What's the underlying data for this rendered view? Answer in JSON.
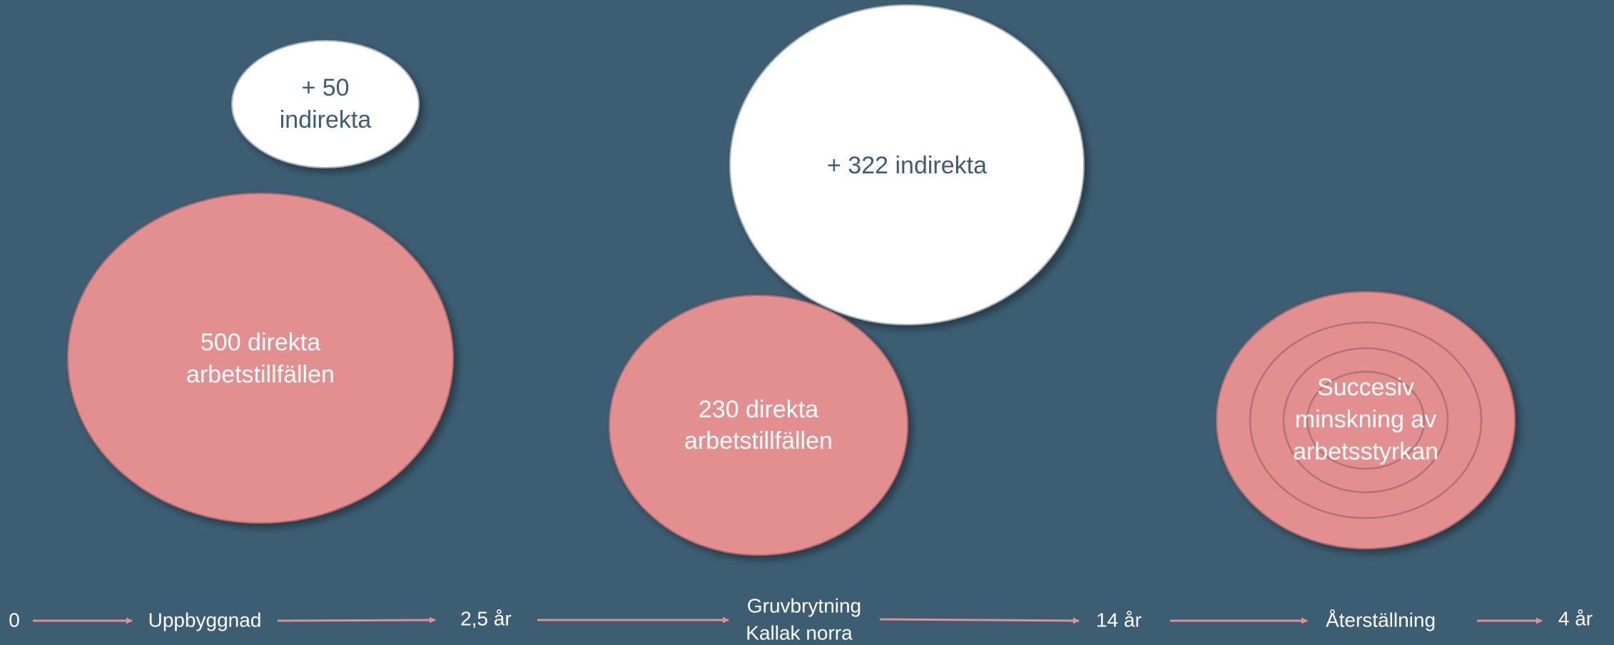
{
  "bubbles": [
    {
      "lines": [
        "+ 50",
        "indirekta"
      ]
    },
    {
      "lines": [
        "500 direkta",
        "arbetstillfällen"
      ]
    },
    {
      "lines": [
        "+ 322 indirekta"
      ]
    },
    {
      "lines": [
        "230 direkta",
        "arbetstillfällen"
      ]
    },
    {
      "lines": [
        "Succesiv",
        "minskning av",
        "arbetsstyrkan"
      ]
    }
  ],
  "timeline": [
    {
      "lines": [
        "0"
      ]
    },
    {
      "lines": [
        "Uppbyggnad"
      ]
    },
    {
      "lines": [
        "2,5 år"
      ]
    },
    {
      "lines": [
        "Gruvbrytning",
        "Kallak norra"
      ]
    },
    {
      "lines": [
        "14 år"
      ]
    },
    {
      "lines": [
        "Återställning"
      ]
    },
    {
      "lines": [
        "4 år"
      ]
    }
  ]
}
